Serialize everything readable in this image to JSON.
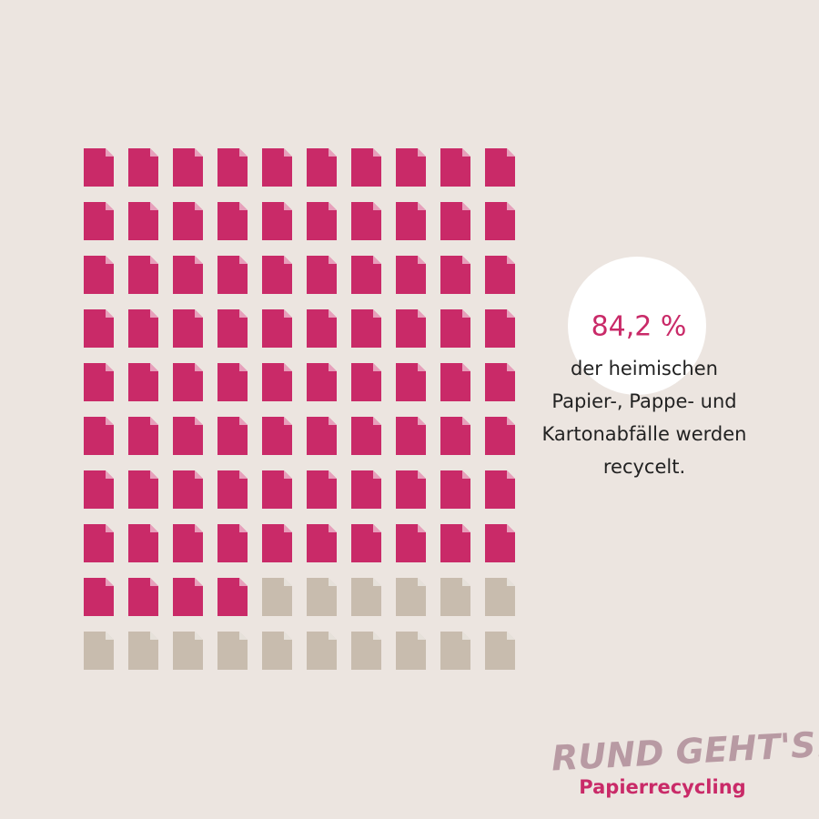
{
  "chart_data": {
    "type": "waffle",
    "value": 84.2,
    "value_label": "84,2 %",
    "color": "#c92a68",
    "rest_color": "#c8bcae",
    "caption": [
      "der heimischen",
      "Papier-, Pappe- und",
      "Kartonabfälle werden",
      "recycelt."
    ]
  },
  "logo": {
    "title": "RUND GEHT'S!",
    "subtitle": "Papierrecycling"
  }
}
